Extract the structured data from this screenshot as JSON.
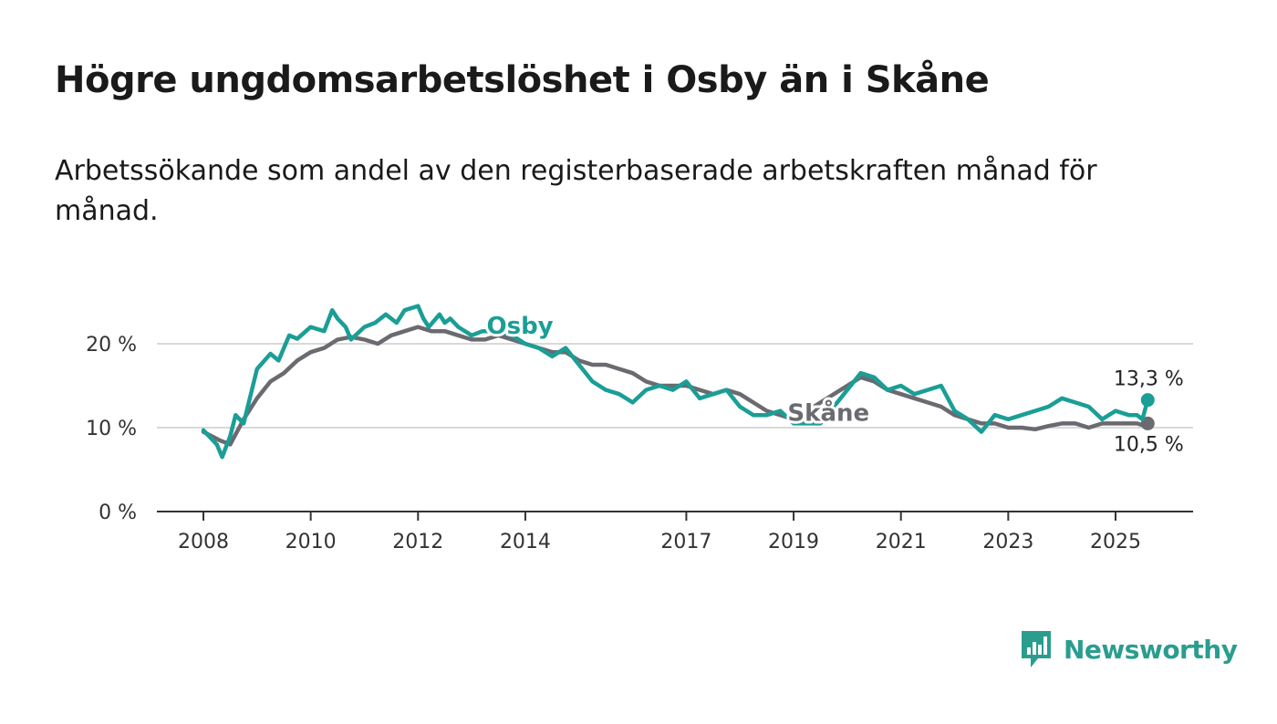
{
  "title": "Högre ungdomsarbetslöshet i Osby än i Skåne",
  "subtitle": "Arbetssökande som andel av den registerbaserade arbetskraften månad för månad.",
  "brand": {
    "name": "Newsworthy",
    "icon": "newsworthy-logo-icon",
    "color": "#2a9d8f"
  },
  "chart_data": {
    "type": "line",
    "xlim": [
      2008,
      2025.75
    ],
    "ylim": [
      0,
      25
    ],
    "grid": true,
    "x_ticks": [
      2008,
      2010,
      2012,
      2014,
      2017,
      2019,
      2021,
      2023,
      2025
    ],
    "y_ticks": [
      {
        "value": 0,
        "label": "0 %"
      },
      {
        "value": 10,
        "label": "10 %"
      },
      {
        "value": 20,
        "label": "20 %"
      }
    ],
    "series": [
      {
        "name": "Osby",
        "color": "#1a9e96",
        "label_at": {
          "x": 2013.9,
          "y": 22.2
        },
        "end_value": 13.3,
        "end_label": "13,3 %",
        "x": [
          2008,
          2008.25,
          2008.35,
          2008.5,
          2008.6,
          2008.75,
          2009,
          2009.25,
          2009.4,
          2009.6,
          2009.75,
          2010,
          2010.25,
          2010.4,
          2010.5,
          2010.65,
          2010.75,
          2011,
          2011.2,
          2011.4,
          2011.6,
          2011.75,
          2012,
          2012.1,
          2012.2,
          2012.4,
          2012.5,
          2012.6,
          2012.75,
          2013,
          2013.2,
          2013.5,
          2013.75,
          2014,
          2014.25,
          2014.5,
          2014.75,
          2015,
          2015.25,
          2015.5,
          2015.75,
          2016,
          2016.25,
          2016.5,
          2016.75,
          2017,
          2017.25,
          2017.5,
          2017.75,
          2018,
          2018.25,
          2018.5,
          2018.75,
          2019,
          2019.25,
          2019.5,
          2020.25,
          2020.5,
          2020.75,
          2021,
          2021.25,
          2021.5,
          2021.75,
          2022,
          2022.25,
          2022.5,
          2022.75,
          2023,
          2023.25,
          2023.5,
          2023.75,
          2024,
          2024.25,
          2024.5,
          2024.75,
          2025,
          2025.25,
          2025.4,
          2025.5,
          2025.6
        ],
        "y": [
          9.7,
          8.0,
          6.5,
          9.0,
          11.5,
          10.5,
          17.0,
          18.8,
          18.0,
          21.0,
          20.6,
          22.0,
          21.5,
          24.0,
          23.0,
          22.0,
          20.5,
          22.0,
          22.5,
          23.5,
          22.5,
          24.0,
          24.5,
          23.0,
          22.0,
          23.5,
          22.5,
          23.0,
          22.0,
          21.0,
          21.5,
          21.5,
          21.0,
          20.0,
          19.5,
          18.5,
          19.5,
          17.5,
          15.5,
          14.5,
          14.0,
          13.0,
          14.5,
          15.0,
          14.5,
          15.5,
          13.5,
          14.0,
          14.5,
          12.5,
          11.5,
          11.5,
          12.0,
          10.5,
          10.5,
          10.5,
          16.5,
          16.0,
          14.5,
          15.0,
          14.0,
          14.5,
          15.0,
          12.0,
          11.0,
          9.5,
          11.5,
          11.0,
          11.5,
          12.0,
          12.5,
          13.5,
          13.0,
          12.5,
          11.0,
          12.0,
          11.5,
          11.5,
          11.0,
          13.3
        ]
      },
      {
        "name": "Skåne",
        "color": "#6b6a70",
        "label_at": {
          "x": 2019.65,
          "y": 11.8
        },
        "end_value": 10.5,
        "end_label": "10,5 %",
        "x": [
          2008,
          2008.3,
          2008.5,
          2008.75,
          2009,
          2009.25,
          2009.5,
          2009.75,
          2010,
          2010.25,
          2010.5,
          2010.75,
          2011,
          2011.25,
          2011.5,
          2011.75,
          2012,
          2012.25,
          2012.5,
          2012.75,
          2013,
          2013.25,
          2013.5,
          2013.75,
          2014,
          2014.25,
          2014.5,
          2014.75,
          2015,
          2015.25,
          2015.5,
          2015.75,
          2016,
          2016.25,
          2016.5,
          2016.75,
          2017,
          2017.25,
          2017.5,
          2017.75,
          2018,
          2018.25,
          2018.5,
          2018.75,
          2019,
          2020.25,
          2020.5,
          2020.75,
          2021,
          2021.25,
          2021.5,
          2021.75,
          2022,
          2022.25,
          2022.5,
          2022.75,
          2023,
          2023.25,
          2023.5,
          2023.75,
          2024,
          2024.25,
          2024.5,
          2024.75,
          2025,
          2025.25,
          2025.4,
          2025.5,
          2025.6
        ],
        "y": [
          9.5,
          8.5,
          8.0,
          11.0,
          13.5,
          15.5,
          16.5,
          18.0,
          19.0,
          19.5,
          20.5,
          20.8,
          20.5,
          20.0,
          21.0,
          21.5,
          22.0,
          21.5,
          21.5,
          21.0,
          20.5,
          20.5,
          21.0,
          20.5,
          20.0,
          19.5,
          19.0,
          19.0,
          18.0,
          17.5,
          17.5,
          17.0,
          16.5,
          15.5,
          15.0,
          15.0,
          15.0,
          14.5,
          14.0,
          14.5,
          14.0,
          13.0,
          12.0,
          11.5,
          11.0,
          16.0,
          15.5,
          14.5,
          14.0,
          13.5,
          13.0,
          12.5,
          11.5,
          11.0,
          10.5,
          10.5,
          10.0,
          10.0,
          9.8,
          10.2,
          10.5,
          10.5,
          10.0,
          10.5,
          10.5,
          10.5,
          10.5,
          10.3,
          10.5
        ]
      }
    ]
  }
}
